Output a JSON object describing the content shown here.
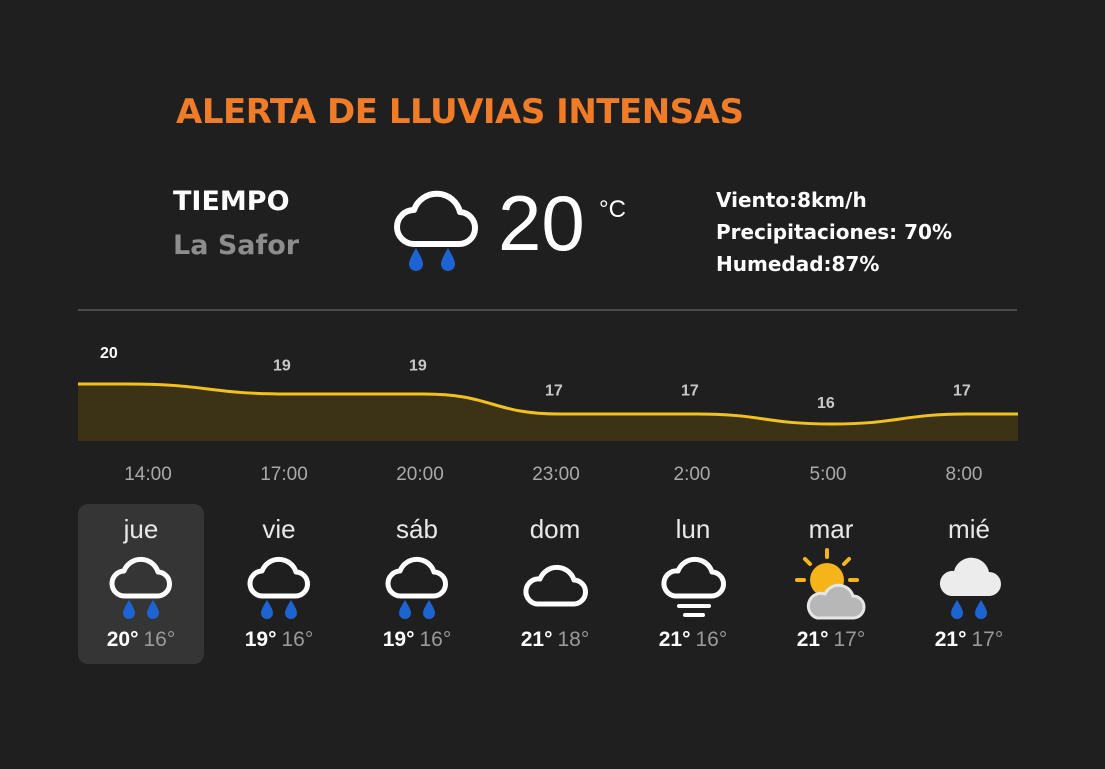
{
  "alert": {
    "text": "ALERTA DE LLUVIAS INTENSAS",
    "color": "#f07c28"
  },
  "location": {
    "title": "TIEMPO",
    "name": "La Safor"
  },
  "current": {
    "icon": "cloud-rain-icon",
    "temperature": "20",
    "unit": "°C",
    "wind": "Viento:8km/h",
    "precipitation": "Precipitaciones: 70%",
    "humidity": "Humedad:87%"
  },
  "chart_data": {
    "type": "area",
    "x": [
      "14:00",
      "17:00",
      "20:00",
      "23:00",
      "2:00",
      "5:00",
      "8:00"
    ],
    "series": [
      {
        "values": [
          20,
          19,
          19,
          17,
          17,
          16,
          17
        ]
      }
    ],
    "line_color": "#f2c21b",
    "fill_color": "#3c3316"
  },
  "days": [
    {
      "name": "jue",
      "icon": "cloud-rain-icon",
      "max": "20°",
      "min": "16°",
      "selected": true
    },
    {
      "name": "vie",
      "icon": "cloud-rain-icon",
      "max": "19°",
      "min": "16°",
      "selected": false
    },
    {
      "name": "sáb",
      "icon": "cloud-rain-icon",
      "max": "19°",
      "min": "16°",
      "selected": false
    },
    {
      "name": "dom",
      "icon": "cloud-icon",
      "max": "21°",
      "min": "18°",
      "selected": false
    },
    {
      "name": "lun",
      "icon": "cloud-fog-icon",
      "max": "21°",
      "min": "16°",
      "selected": false
    },
    {
      "name": "mar",
      "icon": "sun-cloud-icon",
      "max": "21°",
      "min": "17°",
      "selected": false
    },
    {
      "name": "mié",
      "icon": "cloud-rain-filled-icon",
      "max": "21°",
      "min": "17°",
      "selected": false
    }
  ]
}
